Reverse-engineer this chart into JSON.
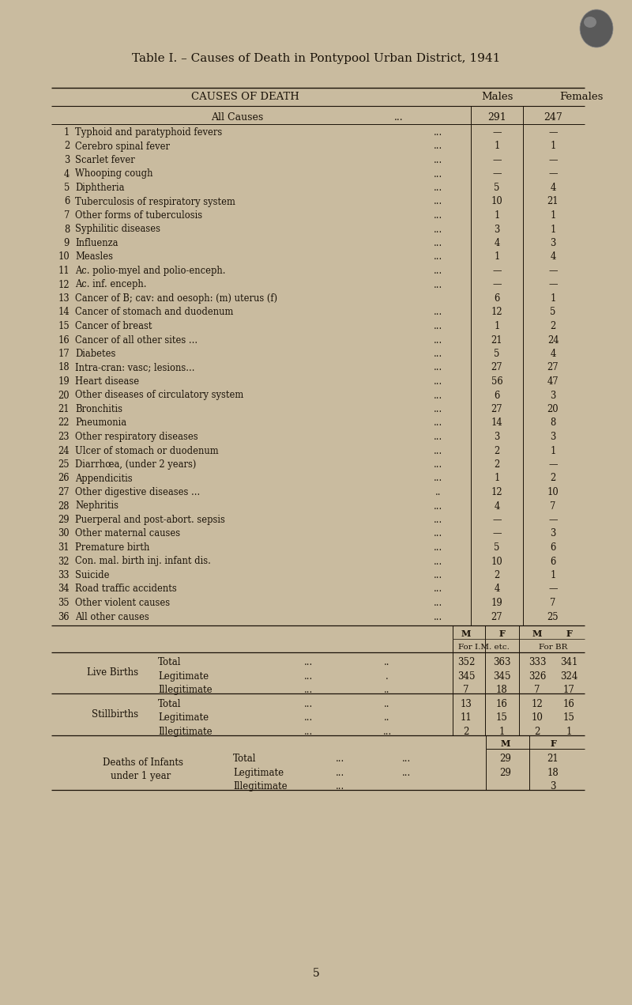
{
  "title": "Table I. – Causes of Death in Pontypool Urban District, 1941",
  "bg_color": "#c9bb9f",
  "text_color": "#1a1208",
  "circle_color": "#6a6a6a",
  "rows": [
    [
      "1",
      "Typhoid and paratyphoid fevers",
      "...",
      "—",
      "—"
    ],
    [
      "2",
      "Cerebro spinal fever",
      "...",
      "1",
      "1"
    ],
    [
      "3",
      "Scarlet fever",
      "...",
      "—",
      "—"
    ],
    [
      "4",
      "Whooping cough",
      "...",
      "—",
      "—"
    ],
    [
      "5",
      "Diphtheria",
      "...",
      "5",
      "4"
    ],
    [
      "6",
      "Tuberculosis of respiratory system",
      "...",
      "10",
      "21"
    ],
    [
      "7",
      "Other forms of tuberculosis",
      "...",
      "1",
      "1"
    ],
    [
      "8",
      "Syphilitic diseases",
      "...",
      "3",
      "1"
    ],
    [
      "9",
      "Influenza",
      "...",
      "4",
      "3"
    ],
    [
      "10",
      "Measles",
      "...",
      "1",
      "4"
    ],
    [
      "11",
      "Ac. polio-myel and polio-enceph.",
      "...",
      "—",
      "—"
    ],
    [
      "12",
      "Ac. inf. enceph.",
      "...",
      "—",
      "—"
    ],
    [
      "13",
      "Cancer of B; cav: and oesoph: (m) uterus (f)",
      "",
      "6",
      "1"
    ],
    [
      "14",
      "Cancer of stomach and duodenum",
      "...",
      "12",
      "5"
    ],
    [
      "15",
      "Cancer of breast",
      "...",
      "1",
      "2"
    ],
    [
      "16",
      "Cancer of all other sites ...",
      "...",
      "21",
      "24"
    ],
    [
      "17",
      "Diabetes",
      "...",
      "5",
      "4"
    ],
    [
      "18",
      "Intra-cran: vasc; lesions...",
      "...",
      "27",
      "27"
    ],
    [
      "19",
      "Heart disease",
      "...",
      "56",
      "47"
    ],
    [
      "20",
      "Other diseases of circulatory system",
      "...",
      "6",
      "3"
    ],
    [
      "21",
      "Bronchitis",
      "...",
      "27",
      "20"
    ],
    [
      "22",
      "Pneumonia",
      "...",
      "14",
      "8"
    ],
    [
      "23",
      "Other respiratory diseases",
      "...",
      "3",
      "3"
    ],
    [
      "24",
      "Ulcer of stomach or duodenum",
      "...",
      "2",
      "1"
    ],
    [
      "25",
      "Diarrhœa, (under 2 years)",
      "...",
      "2",
      "—"
    ],
    [
      "26",
      "Appendicitis",
      "...",
      "1",
      "2"
    ],
    [
      "27",
      "Other digestive diseases ...",
      "..",
      "12",
      "10"
    ],
    [
      "28",
      "Nephritis",
      "...",
      "4",
      "7"
    ],
    [
      "29",
      "Puerperal and post-abort. sepsis",
      "...",
      "—",
      "—"
    ],
    [
      "30",
      "Other maternal causes",
      "...",
      "—",
      "3"
    ],
    [
      "31",
      "Premature birth",
      "...",
      "5",
      "6"
    ],
    [
      "32",
      "Con. mal. birth inj. infant dis.",
      "...",
      "10",
      "6"
    ],
    [
      "33",
      "Suicide",
      "...",
      "2",
      "1"
    ],
    [
      "34",
      "Road traffic accidents",
      "...",
      "4",
      "—"
    ],
    [
      "35",
      "Other violent causes",
      "...",
      "19",
      "7"
    ],
    [
      "36",
      "All other causes",
      "...",
      "27",
      "25"
    ]
  ],
  "lb_rows": [
    [
      "Total",
      "...",
      "..",
      "352",
      "363",
      "333",
      "341"
    ],
    [
      "Legitimate",
      "...",
      ".",
      "345",
      "345",
      "326",
      "324"
    ],
    [
      "Illegitimate",
      "...",
      "..",
      "7",
      "18",
      "7",
      "17"
    ]
  ],
  "sb_rows": [
    [
      "Total",
      "...",
      "..",
      "13",
      "16",
      "12",
      "16"
    ],
    [
      "Legitimate",
      "...",
      "..",
      "11",
      "15",
      "10",
      "15"
    ],
    [
      "Illegitimate",
      "...",
      "...",
      "2",
      "1",
      "2",
      "1"
    ]
  ],
  "id_rows": [
    [
      "Total",
      "...",
      "...",
      "29",
      "21"
    ],
    [
      "Legitimate",
      "...",
      "...",
      "29",
      "18"
    ],
    [
      "Illegitimate",
      "...",
      "",
      "",
      "3"
    ]
  ],
  "page_number": "5"
}
